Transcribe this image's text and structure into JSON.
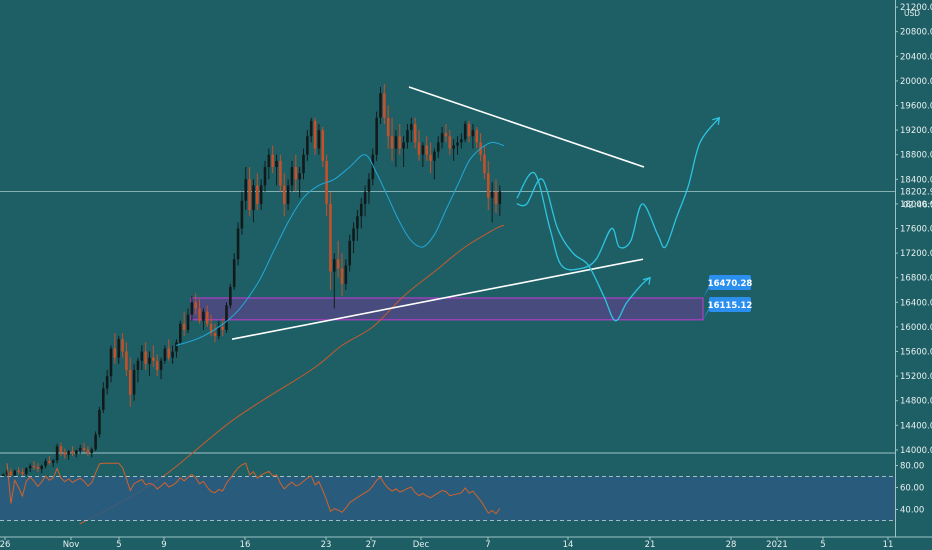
{
  "chart_data": {
    "type": "candlestick",
    "currency": "USD",
    "y_axis": {
      "ticks": [
        14000,
        14400,
        14800,
        15200,
        15600,
        16000,
        16400,
        16800,
        17200,
        17600,
        18000,
        18400,
        18800,
        19200,
        19600,
        20000,
        20400,
        20800,
        21200
      ],
      "tick_labels": [
        "14000.00",
        "14400.00",
        "14800.00",
        "15200.00",
        "15600.00",
        "16000.00",
        "16400.00",
        "16800.00",
        "17200.00",
        "17600.00",
        "18000.00",
        "18400.00",
        "18800.00",
        "19200.00",
        "19600.00",
        "20000.00",
        "20400.00",
        "20800.00",
        "21200.00"
      ],
      "range": [
        13950,
        21250
      ]
    },
    "x_axis": {
      "labels": [
        "26",
        "Nov",
        "5",
        "9",
        "16",
        "23",
        "27",
        "Dec",
        "7",
        "14",
        "21",
        "28",
        "2021",
        "5",
        "11"
      ]
    },
    "last_price": "18202.94",
    "countdown": "02:46:53",
    "price_tags": [
      "16470.28",
      "16115.12"
    ],
    "zone": {
      "low": 16115.12,
      "high": 16470.28
    },
    "candles": [
      [
        13560,
        13620,
        13520,
        13600
      ],
      [
        13600,
        13680,
        13540,
        13650
      ],
      [
        13650,
        13700,
        13560,
        13590
      ],
      [
        13590,
        13680,
        13540,
        13660
      ],
      [
        13660,
        13720,
        13600,
        13640
      ],
      [
        13640,
        13700,
        13560,
        13610
      ],
      [
        13610,
        13720,
        13580,
        13700
      ],
      [
        13700,
        13780,
        13640,
        13740
      ],
      [
        13740,
        13820,
        13680,
        13720
      ],
      [
        13720,
        13780,
        13640,
        13690
      ],
      [
        13690,
        13760,
        13620,
        13740
      ],
      [
        13740,
        13860,
        13700,
        13820
      ],
      [
        13820,
        13900,
        13760,
        13790
      ],
      [
        13790,
        13850,
        13720,
        13830
      ],
      [
        13830,
        14100,
        13780,
        14060
      ],
      [
        14060,
        14120,
        13900,
        13960
      ],
      [
        13960,
        14020,
        13860,
        13920
      ],
      [
        13920,
        14000,
        13840,
        13980
      ],
      [
        13980,
        14060,
        13900,
        13940
      ],
      [
        13940,
        14000,
        13880,
        13990
      ],
      [
        13990,
        14080,
        13940,
        14030
      ],
      [
        14030,
        14120,
        13960,
        14000
      ],
      [
        14000,
        14060,
        13900,
        13950
      ],
      [
        13950,
        14040,
        13880,
        14010
      ],
      [
        14010,
        14300,
        13980,
        14250
      ],
      [
        14250,
        14700,
        14200,
        14650
      ],
      [
        14650,
        15100,
        14600,
        15000
      ],
      [
        15000,
        15300,
        14900,
        15200
      ],
      [
        15200,
        15700,
        15100,
        15650
      ],
      [
        15650,
        15900,
        15400,
        15500
      ],
      [
        15500,
        15850,
        15400,
        15800
      ],
      [
        15800,
        15900,
        15500,
        15600
      ],
      [
        15600,
        15750,
        15200,
        15300
      ],
      [
        15300,
        15500,
        14700,
        14900
      ],
      [
        14900,
        15400,
        14800,
        15300
      ],
      [
        15300,
        15500,
        15100,
        15450
      ],
      [
        15450,
        15700,
        15300,
        15600
      ],
      [
        15600,
        15750,
        15300,
        15400
      ],
      [
        15400,
        15600,
        15200,
        15500
      ],
      [
        15500,
        15700,
        15350,
        15450
      ],
      [
        15450,
        15550,
        15200,
        15300
      ],
      [
        15300,
        15500,
        15150,
        15450
      ],
      [
        15450,
        15700,
        15400,
        15650
      ],
      [
        15650,
        15800,
        15450,
        15500
      ],
      [
        15500,
        15700,
        15400,
        15600
      ],
      [
        15600,
        15800,
        15500,
        15750
      ],
      [
        15750,
        16100,
        15700,
        16050
      ],
      [
        16050,
        16250,
        15850,
        15950
      ],
      [
        15950,
        16300,
        15900,
        16200
      ],
      [
        16200,
        16500,
        16100,
        16400
      ],
      [
        16400,
        16550,
        16200,
        16300
      ],
      [
        16300,
        16450,
        16050,
        16100
      ],
      [
        16100,
        16300,
        15950,
        16250
      ],
      [
        16250,
        16350,
        16000,
        16050
      ],
      [
        16050,
        16200,
        15850,
        15900
      ],
      [
        15900,
        16050,
        15750,
        15850
      ],
      [
        15850,
        16100,
        15800,
        16000
      ],
      [
        16000,
        16150,
        15850,
        15950
      ],
      [
        15950,
        16400,
        15900,
        16350
      ],
      [
        16350,
        16700,
        16300,
        16650
      ],
      [
        16650,
        17200,
        16600,
        17100
      ],
      [
        17100,
        17700,
        17000,
        17600
      ],
      [
        17600,
        18200,
        17500,
        18050
      ],
      [
        18050,
        18600,
        17900,
        18400
      ],
      [
        18400,
        18600,
        17800,
        17900
      ],
      [
        17900,
        18400,
        17700,
        18300
      ],
      [
        18300,
        18500,
        17900,
        18000
      ],
      [
        18000,
        18400,
        17900,
        18300
      ],
      [
        18300,
        18700,
        18200,
        18600
      ],
      [
        18600,
        18900,
        18400,
        18800
      ],
      [
        18800,
        18950,
        18500,
        18600
      ],
      [
        18600,
        18800,
        18300,
        18700
      ],
      [
        18700,
        18800,
        18200,
        18300
      ],
      [
        18300,
        18500,
        17800,
        18000
      ],
      [
        18000,
        18400,
        17900,
        18300
      ],
      [
        18300,
        18700,
        18200,
        18600
      ],
      [
        18600,
        18800,
        18200,
        18400
      ],
      [
        18400,
        18600,
        18100,
        18500
      ],
      [
        18500,
        18900,
        18400,
        18800
      ],
      [
        18800,
        19200,
        18700,
        19100
      ],
      [
        19100,
        19400,
        19000,
        19350
      ],
      [
        19350,
        19400,
        18800,
        18900
      ],
      [
        18900,
        19300,
        18800,
        19200
      ],
      [
        19200,
        19250,
        18600,
        18700
      ],
      [
        18700,
        18800,
        17800,
        18000
      ],
      [
        18000,
        18200,
        16600,
        16900
      ],
      [
        16900,
        17200,
        16300,
        17100
      ],
      [
        17100,
        17400,
        16800,
        16950
      ],
      [
        16950,
        17200,
        16500,
        16700
      ],
      [
        16700,
        17100,
        16600,
        17000
      ],
      [
        17000,
        17500,
        16900,
        17400
      ],
      [
        17400,
        17700,
        17200,
        17600
      ],
      [
        17600,
        17900,
        17400,
        17800
      ],
      [
        17800,
        18100,
        17600,
        18000
      ],
      [
        18000,
        18300,
        17800,
        18200
      ],
      [
        18200,
        18500,
        18000,
        18400
      ],
      [
        18400,
        18900,
        18300,
        18800
      ],
      [
        18800,
        19500,
        18700,
        19400
      ],
      [
        19400,
        19900,
        19300,
        19800
      ],
      [
        19800,
        19950,
        19300,
        19400
      ],
      [
        19400,
        19600,
        18900,
        19100
      ],
      [
        19100,
        19400,
        18700,
        18900
      ],
      [
        18900,
        19200,
        18600,
        19100
      ],
      [
        19100,
        19300,
        18800,
        18900
      ],
      [
        18900,
        19100,
        18600,
        19000
      ],
      [
        19000,
        19300,
        18900,
        19200
      ],
      [
        19200,
        19400,
        19000,
        19300
      ],
      [
        19300,
        19400,
        18900,
        19000
      ],
      [
        19000,
        19200,
        18700,
        18800
      ],
      [
        18800,
        19000,
        18600,
        18950
      ],
      [
        18950,
        19100,
        18700,
        18800
      ],
      [
        18800,
        19000,
        18500,
        18700
      ],
      [
        18700,
        18900,
        18400,
        18850
      ],
      [
        18850,
        19100,
        18750,
        19000
      ],
      [
        19000,
        19250,
        18900,
        19150
      ],
      [
        19150,
        19300,
        19000,
        19100
      ],
      [
        19100,
        19200,
        18800,
        18900
      ],
      [
        18900,
        19050,
        18700,
        18950
      ],
      [
        18950,
        19100,
        18800,
        19000
      ],
      [
        19000,
        19150,
        18900,
        19050
      ],
      [
        19050,
        19350,
        19000,
        19300
      ],
      [
        19300,
        19350,
        19000,
        19100
      ],
      [
        19100,
        19300,
        18900,
        19200
      ],
      [
        19200,
        19250,
        18900,
        19000
      ],
      [
        19000,
        19150,
        18700,
        18800
      ],
      [
        18800,
        18950,
        18400,
        18500
      ],
      [
        18500,
        18700,
        17900,
        18100
      ],
      [
        18100,
        18350,
        17700,
        18200
      ],
      [
        18200,
        18400,
        17850,
        18000
      ],
      [
        18000,
        18300,
        17800,
        18203
      ]
    ],
    "ma_blue": [
      [
        45,
        15700
      ],
      [
        52,
        15850
      ],
      [
        60,
        16200
      ],
      [
        66,
        16700
      ],
      [
        70,
        17200
      ],
      [
        74,
        17700
      ],
      [
        78,
        18100
      ],
      [
        82,
        18300
      ],
      [
        86,
        18400
      ],
      [
        90,
        18600
      ],
      [
        94,
        18800
      ],
      [
        97,
        18500
      ],
      [
        100,
        18100
      ],
      [
        103,
        17700
      ],
      [
        106,
        17400
      ],
      [
        109,
        17300
      ],
      [
        112,
        17500
      ],
      [
        115,
        17900
      ],
      [
        118,
        18300
      ],
      [
        121,
        18700
      ],
      [
        124,
        18900
      ],
      [
        127,
        19000
      ],
      [
        130,
        18950
      ]
    ],
    "ma_orange": [
      [
        20,
        12800
      ],
      [
        40,
        13500
      ],
      [
        60,
        14500
      ],
      [
        80,
        15300
      ],
      [
        88,
        15700
      ],
      [
        96,
        16000
      ],
      [
        104,
        16500
      ],
      [
        112,
        16900
      ],
      [
        120,
        17300
      ],
      [
        128,
        17600
      ],
      [
        130,
        17650
      ]
    ],
    "trend_upper": [
      [
        18.4,
        19900
      ],
      [
        57,
        18600
      ]
    ],
    "trend_lower": [
      [
        10,
        15800
      ],
      [
        56,
        17100
      ]
    ],
    "projection_a": [
      [
        133.5,
        18000
      ],
      [
        136,
        18000
      ],
      [
        140,
        18400
      ],
      [
        144,
        17600
      ],
      [
        148,
        17200
      ],
      [
        152,
        17000
      ],
      [
        156,
        16500
      ],
      [
        159,
        16100
      ],
      [
        162,
        16400
      ],
      [
        166,
        16700
      ],
      [
        168,
        16800
      ]
    ],
    "projection_b": [
      [
        133.5,
        18100
      ],
      [
        138,
        18500
      ],
      [
        142,
        17600
      ],
      [
        145,
        17000
      ],
      [
        150,
        16950
      ],
      [
        154,
        17100
      ],
      [
        158,
        17600
      ],
      [
        160,
        17300
      ],
      [
        163,
        17400
      ],
      [
        166,
        18000
      ],
      [
        170,
        17500
      ],
      [
        172,
        17300
      ],
      [
        175,
        17800
      ],
      [
        178,
        18300
      ],
      [
        181,
        19000
      ],
      [
        186,
        19400
      ]
    ],
    "rsi": {
      "ticks": [
        40,
        60,
        80
      ],
      "tick_labels": [
        "40.00",
        "60.00",
        "80.00"
      ],
      "upper": 70,
      "lower": 30,
      "range": [
        25,
        85
      ]
    }
  },
  "ui": {
    "colors": {
      "bg": "#1e5f66",
      "bull": "#111a1a",
      "bear": "#c65028",
      "ma_blue": "#23a8d8",
      "ma_orange": "#c85a2c",
      "projection": "#2ec4e0",
      "zone_border": "#c63bd6",
      "zone_fill": "rgba(150,40,170,0.35)",
      "tag": "#2b8ff0",
      "rsi_line": "#d2612a",
      "rsi_bg": "#2b5c80"
    }
  }
}
